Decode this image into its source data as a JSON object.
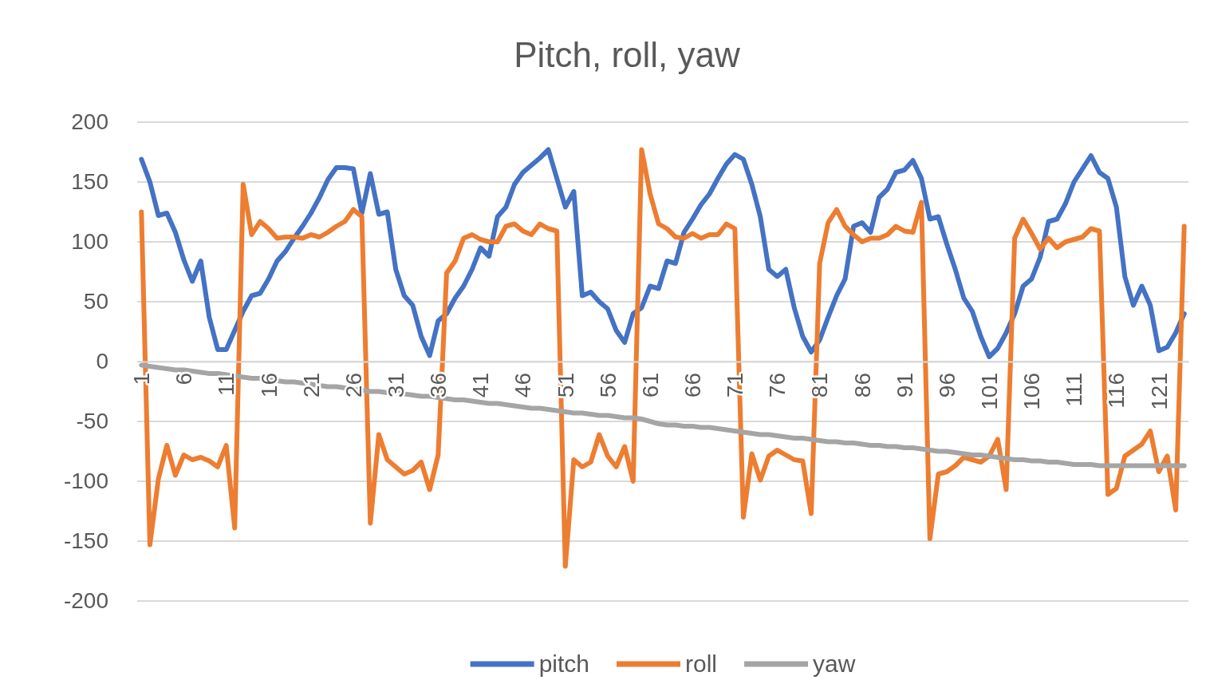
{
  "chart_data": {
    "type": "line",
    "title": "Pitch, roll, yaw",
    "categories": [
      "1",
      null,
      null,
      null,
      null,
      "6",
      null,
      null,
      null,
      null,
      "11",
      null,
      null,
      null,
      null,
      "16",
      null,
      null,
      null,
      null,
      "21",
      null,
      null,
      null,
      null,
      "26",
      null,
      null,
      null,
      null,
      "31",
      null,
      null,
      null,
      null,
      "36",
      null,
      null,
      null,
      null,
      "41",
      null,
      null,
      null,
      null,
      "46",
      null,
      null,
      null,
      null,
      "51",
      null,
      null,
      null,
      null,
      "56",
      null,
      null,
      null,
      null,
      "61",
      null,
      null,
      null,
      null,
      "66",
      null,
      null,
      null,
      null,
      "71",
      null,
      null,
      null,
      null,
      "76",
      null,
      null,
      null,
      null,
      "81",
      null,
      null,
      null,
      null,
      "86",
      null,
      null,
      null,
      null,
      "91",
      null,
      null,
      null,
      null,
      "96",
      null,
      null,
      null,
      null,
      "101",
      null,
      null,
      null,
      null,
      "106",
      null,
      null,
      null,
      null,
      "111",
      null,
      null,
      null,
      null,
      "116",
      null,
      null,
      null,
      null,
      "121",
      null,
      null,
      null
    ],
    "series": [
      {
        "name": "pitch",
        "color": "#4472c4",
        "values": [
          169,
          150,
          122,
          124,
          108,
          85,
          67,
          84,
          37,
          10,
          10,
          26,
          42,
          55,
          57,
          69,
          84,
          92,
          103,
          113,
          124,
          137,
          152,
          162,
          162,
          161,
          124,
          157,
          123,
          125,
          77,
          55,
          47,
          21,
          5,
          34,
          40,
          53,
          63,
          77,
          95,
          88,
          121,
          129,
          148,
          158,
          164,
          170,
          177,
          153,
          129,
          142,
          55,
          58,
          50,
          44,
          26,
          16,
          40,
          45,
          63,
          61,
          84,
          82,
          108,
          119,
          131,
          140,
          153,
          165,
          173,
          169,
          148,
          121,
          77,
          71,
          77,
          45,
          21,
          8,
          18,
          37,
          55,
          69,
          113,
          116,
          108,
          137,
          144,
          158,
          160,
          168,
          153,
          119,
          121,
          98,
          77,
          53,
          42,
          21,
          4,
          11,
          24,
          40,
          63,
          69,
          87,
          117,
          119,
          132,
          150,
          161,
          172,
          158,
          153,
          129,
          71,
          47,
          63,
          47,
          9,
          12,
          24,
          40
        ]
      },
      {
        "name": "roll",
        "color": "#ed7d31",
        "values": [
          125,
          -153,
          -98,
          -70,
          -95,
          -78,
          -82,
          -80,
          -83,
          -88,
          -70,
          -139,
          148,
          106,
          117,
          111,
          103,
          104,
          104,
          103,
          106,
          104,
          108,
          113,
          117,
          127,
          121,
          -135,
          -61,
          -82,
          -88,
          -94,
          -91,
          -84,
          -107,
          -78,
          74,
          84,
          103,
          106,
          102,
          100,
          100,
          113,
          115,
          109,
          106,
          115,
          111,
          109,
          -171,
          -82,
          -88,
          -84,
          -61,
          -79,
          -88,
          -71,
          -100,
          177,
          140,
          115,
          111,
          104,
          103,
          107,
          103,
          106,
          106,
          115,
          111,
          -130,
          -77,
          -99,
          -79,
          -74,
          -78,
          -82,
          -83,
          -127,
          82,
          116,
          127,
          113,
          106,
          100,
          103,
          103,
          106,
          113,
          109,
          108,
          133,
          -148,
          -94,
          -92,
          -87,
          -80,
          -82,
          -84,
          -79,
          -65,
          -107,
          103,
          119,
          107,
          94,
          103,
          95,
          100,
          102,
          104,
          111,
          109,
          -111,
          -106,
          -79,
          -74,
          -69,
          -58,
          -92,
          -79,
          -124,
          113
        ]
      },
      {
        "name": "yaw",
        "color": "#a5a5a5",
        "values": [
          -3,
          -4,
          -5,
          -6,
          -7,
          -7,
          -8,
          -9,
          -10,
          -10,
          -11,
          -12,
          -13,
          -14,
          -14,
          -15,
          -16,
          -17,
          -17,
          -18,
          -19,
          -20,
          -21,
          -21,
          -22,
          -23,
          -24,
          -25,
          -25,
          -26,
          -26,
          -27,
          -28,
          -29,
          -29,
          -30,
          -31,
          -32,
          -32,
          -33,
          -34,
          -35,
          -35,
          -36,
          -37,
          -38,
          -39,
          -39,
          -40,
          -41,
          -42,
          -43,
          -43,
          -44,
          -45,
          -45,
          -46,
          -47,
          -47,
          -48,
          -50,
          -52,
          -53,
          -53,
          -54,
          -54,
          -55,
          -55,
          -56,
          -57,
          -58,
          -59,
          -60,
          -61,
          -61,
          -62,
          -63,
          -64,
          -64,
          -65,
          -66,
          -67,
          -67,
          -68,
          -68,
          -69,
          -70,
          -70,
          -71,
          -71,
          -72,
          -72,
          -73,
          -74,
          -75,
          -75,
          -76,
          -77,
          -78,
          -78,
          -79,
          -80,
          -81,
          -82,
          -82,
          -83,
          -83,
          -84,
          -84,
          -85,
          -86,
          -86,
          -86,
          -87,
          -87,
          -87,
          -87,
          -87,
          -87,
          -87,
          -87,
          -87,
          -87,
          -87
        ]
      }
    ],
    "ylim": [
      -200,
      200
    ],
    "yticks": [
      -200,
      -150,
      -100,
      -50,
      0,
      50,
      100,
      150,
      200
    ],
    "grid": "y",
    "legend": "bottom",
    "marker": "none",
    "line_style": "solid"
  }
}
